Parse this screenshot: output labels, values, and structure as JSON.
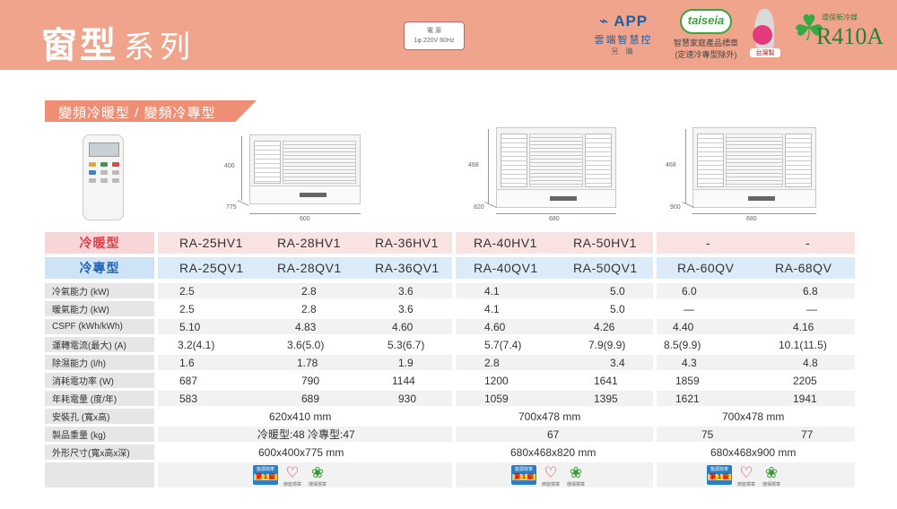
{
  "header": {
    "title_main": "窗型",
    "title_sub": "系列",
    "power_title": "電 源",
    "power_value": "1φ 220V 60Hz",
    "app_logo": "APP",
    "app_name": "雲端智慧控",
    "app_note": "另 購",
    "taiseia_logo": "taiseia",
    "taiseia_line1": "智慧家庭產品標章",
    "taiseia_line2": "(定速冷專型除外)",
    "made_in": "台灣製",
    "refrigerant_note": "環保新冷媒",
    "refrigerant": "R410A"
  },
  "category": "變頻冷暖型 / 變頻冷專型",
  "images": {
    "unit1": {
      "height": "400",
      "depth": "775",
      "width": "600"
    },
    "unit2": {
      "height": "468",
      "depth": "820",
      "width": "680"
    },
    "unit3": {
      "height": "468",
      "depth": "900",
      "width": "680"
    }
  },
  "table": {
    "heat_label": "冷暖型",
    "cool_label": "冷專型",
    "heat_models": [
      "RA-25HV1",
      "RA-28HV1",
      "RA-36HV1",
      "RA-40HV1",
      "RA-50HV1",
      "-",
      "-"
    ],
    "cool_models": [
      "RA-25QV1",
      "RA-28QV1",
      "RA-36QV1",
      "RA-40QV1",
      "RA-50QV1",
      "RA-60QV",
      "RA-68QV"
    ],
    "specs": [
      {
        "label": "冷氣能力 (kW)",
        "values": [
          "2.5",
          "2.8",
          "3.6",
          "4.1",
          "5.0",
          "6.0",
          "6.8"
        ]
      },
      {
        "label": "暖氣能力 (kW)",
        "values": [
          "2.5",
          "2.8",
          "3.6",
          "4.1",
          "5.0",
          "—",
          "—"
        ]
      },
      {
        "label": "CSPF (kWh/kWh)",
        "values": [
          "5.10",
          "4.83",
          "4.60",
          "4.60",
          "4.26",
          "4.40",
          "4.16"
        ]
      },
      {
        "label": "運轉電流(最大) (A)",
        "values": [
          "3.2(4.1)",
          "3.6(5.0)",
          "5.3(6.7)",
          "5.7(7.4)",
          "7.9(9.9)",
          "8.5(9.9)",
          "10.1(11.5)"
        ]
      },
      {
        "label": "除濕能力 (l/h)",
        "values": [
          "1.6",
          "1.78",
          "1.9",
          "2.8",
          "3.4",
          "4.3",
          "4.8"
        ]
      },
      {
        "label": "消耗電功率 (W)",
        "values": [
          "687",
          "790",
          "1144",
          "1200",
          "1641",
          "1859",
          "2205"
        ]
      },
      {
        "label": "年耗電量 (度/年)",
        "values": [
          "583",
          "689",
          "930",
          "1059",
          "1395",
          "1621",
          "1941"
        ]
      }
    ],
    "install_label": "安裝孔 (寬x高)",
    "install_values": [
      "620x410 mm",
      "700x478 mm",
      "700x478 mm"
    ],
    "weight_label": "製品重量 (kg)",
    "weight_values": [
      "冷暖型:48 冷專型:47",
      "67",
      "75",
      "77"
    ],
    "size_label": "外形尺寸(寬x高x深)",
    "size_values": [
      "600x400x775 mm",
      "680x468x820 mm",
      "680x468x900 mm"
    ],
    "badge_eff_text": "能源效率",
    "badge_grade": "第 1 級",
    "badge_save": "節能標章",
    "badge_eco": "環保標章"
  },
  "colors": {
    "header_bg": "#f0a48c",
    "heat_accent": "#e23b4a",
    "cool_accent": "#1f63b7",
    "category_bg": "#ee8f75"
  }
}
